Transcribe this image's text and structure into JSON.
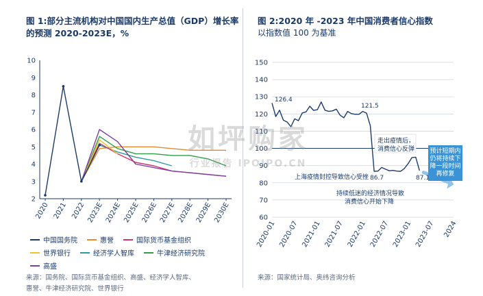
{
  "left_panel": {
    "title_line1": "图 1:部分主流机构对中国国内生产总值（GDP）增长率",
    "title_line2": "的预测 2020-2023E，%",
    "source_line1": "来源：国务院、国际货币基金组织、高盛、经济学人智库、",
    "source_line2": "惠誉、牛津经济研究院、世界银行"
  },
  "right_panel": {
    "title_line1": "图 2:2020 年 -2023 年中国消费者信心指数",
    "title_line2": "以指数值 100 为基准",
    "source_line1": "来源：国家统计局、奥纬咨询分析"
  },
  "watermark": {
    "main": "如坪购家",
    "sub": "行业报告 IPOIPO.CN"
  },
  "chart_data": [
    {
      "type": "line",
      "title": "图 1:部分主流机构对中国国内生产总值（GDP）增长率的预测 2020-2023E，%",
      "categories": [
        "2020",
        "2021",
        "2022",
        "2023E",
        "2024E",
        "2025E",
        "2026E",
        "2027E",
        "2028E",
        "2029E",
        "2030E"
      ],
      "ylim": [
        2,
        10
      ],
      "yticks": [
        2,
        3,
        4,
        5,
        6,
        7,
        8,
        9,
        10
      ],
      "grid": false,
      "legend_position": "bottom",
      "series": [
        {
          "name": "中国国务院",
          "color": "#1a3a6b",
          "values": [
            2.2,
            8.5,
            3.0,
            5.1,
            null,
            null,
            null,
            null,
            null,
            null,
            null
          ]
        },
        {
          "name": "惠誉",
          "color": "#e8892e",
          "values": [
            null,
            null,
            3.0,
            4.9,
            5.0,
            5.0,
            5.0,
            4.9,
            4.8,
            4.8,
            4.8
          ]
        },
        {
          "name": "国际货币基金组织",
          "color": "#d6336c",
          "values": [
            null,
            null,
            3.0,
            5.2,
            4.6,
            4.1,
            3.9,
            3.6,
            3.5,
            3.4,
            3.3
          ]
        },
        {
          "name": "世界银行",
          "color": "#f2c12e",
          "values": [
            null,
            null,
            3.0,
            5.4,
            4.6,
            null,
            null,
            null,
            null,
            null,
            null
          ]
        },
        {
          "name": "经济学人智库",
          "color": "#2a9d9f",
          "values": [
            null,
            null,
            3.0,
            5.1,
            4.7,
            4.4,
            4.2,
            3.9,
            null,
            null,
            null
          ]
        },
        {
          "name": "牛津经济研究院",
          "color": "#2e9e48",
          "values": [
            null,
            null,
            3.0,
            5.6,
            4.9,
            4.6,
            4.6,
            4.5,
            4.5,
            4.3,
            3.9
          ]
        },
        {
          "name": "高盛",
          "color": "#7b3fa0",
          "values": [
            null,
            null,
            3.0,
            6.0,
            5.3,
            4.0,
            3.8,
            3.6,
            3.5,
            3.4,
            3.3
          ]
        }
      ]
    },
    {
      "type": "line",
      "title": "图 2:2020 年 -2023 年中国消费者信心指数",
      "xlabel": "",
      "ylabel": "",
      "x_ticks": [
        "2020-01",
        "2020-07",
        "2021-01",
        "2021-07",
        "2022-01",
        "2022-07",
        "2023-01",
        "2023-07",
        "2024"
      ],
      "ylim": [
        60,
        150
      ],
      "yticks": [
        60,
        70,
        80,
        90,
        100,
        110,
        120,
        130,
        140,
        150
      ],
      "grid": "horizontal",
      "series": [
        {
          "name": "",
          "color": "#1a3a6b",
          "values": [
            126.4,
            118.5,
            122.2,
            116.4,
            115.3,
            112.6,
            117.2,
            116.1,
            120.6,
            121.2,
            124.5,
            122.1,
            122.5,
            127.0,
            122.2,
            121.5,
            121.8,
            122.8,
            119.3,
            117.8,
            121.5,
            120.2,
            119.8,
            119.8,
            121.5,
            120.5,
            113.2,
            86.7,
            86.8,
            88.9,
            87.9,
            87.0,
            87.2,
            86.8,
            86.7,
            88.3,
            91.2,
            94.7,
            94.9,
            87.1
          ]
        }
      ],
      "annotations": [
        {
          "text": "126.4"
        },
        {
          "text": "121.5"
        },
        {
          "text": "86.7"
        },
        {
          "text": "87.1"
        },
        {
          "text": "上海疫情封控导致信心受挫"
        },
        {
          "text": "走出疫情后，"
        },
        {
          "text": "消费信心反弹"
        },
        {
          "text": "持续低迷的经济情况导致"
        },
        {
          "text": "消费信心开始下降"
        },
        {
          "text": "预计短期内"
        },
        {
          "text": "仍将持续下"
        },
        {
          "text": "降一段时间"
        },
        {
          "text": "再修复"
        }
      ]
    }
  ]
}
